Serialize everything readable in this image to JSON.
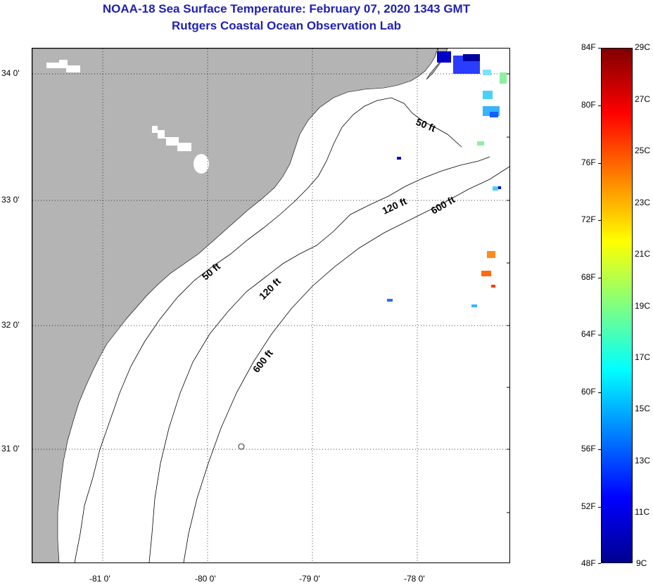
{
  "title_line1": "NOAA-18 Sea Surface Temperature:  February 07, 2020 1343 GMT",
  "title_line2": "Rutgers Coastal Ocean Observation Lab",
  "map": {
    "land_color": "#b4b4b4",
    "water_color": "#ffffff",
    "grid_style": "dotted",
    "lat_labels": [
      "34 0'",
      "33 0'",
      "32 0'",
      "31 0'"
    ],
    "lon_labels": [
      "-81 0'",
      "-80 0'",
      "-79 0'",
      "-78 0'"
    ],
    "contour_labels": {
      "c50_north": "50 ft",
      "c50_south": "50 ft",
      "c120_north": "120 ft",
      "c120_south": "120 ft",
      "c600_north": "600 ft",
      "c600_south": "600 ft"
    }
  },
  "colorbar": {
    "fahrenheit_labels": [
      "84F",
      "80F",
      "76F",
      "72F",
      "68F",
      "64F",
      "60F",
      "56F",
      "52F",
      "48F"
    ],
    "celsius_labels": [
      "29C",
      "27C",
      "25C",
      "23C",
      "21C",
      "19C",
      "17C",
      "15C",
      "13C",
      "11C",
      "9C"
    ],
    "colors": [
      "#00008f",
      "#0000ff",
      "#0080ff",
      "#00ffff",
      "#80ff80",
      "#ffff00",
      "#ff8000",
      "#ff0000",
      "#800000"
    ]
  }
}
